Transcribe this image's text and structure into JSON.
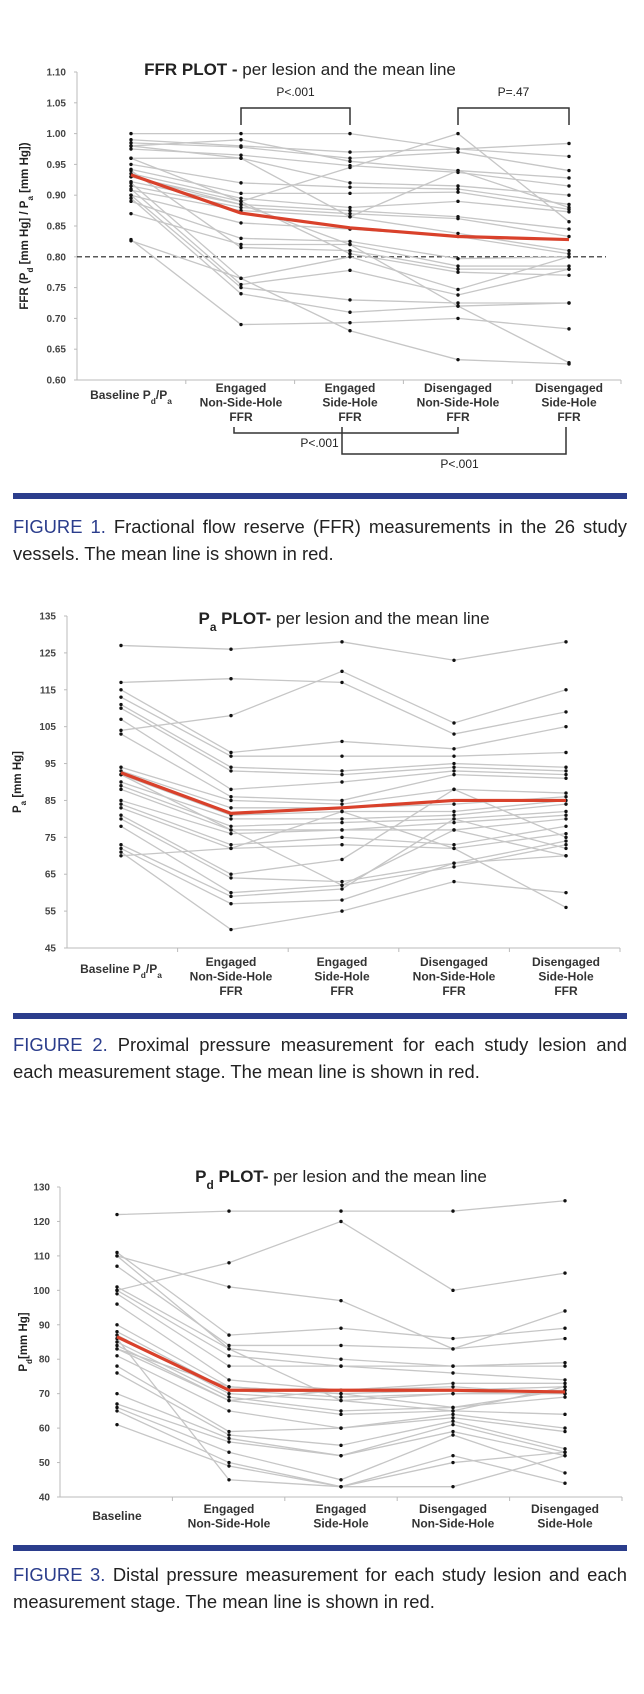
{
  "colors": {
    "individual_line": "#c6c6c6",
    "mean_line": "#d9412b",
    "point": "#111111",
    "caption_accent": "#2b3d8c",
    "reference_line": "#222222"
  },
  "chart_data": [
    {
      "type": "line",
      "title_parts": [
        {
          "text": "FFR PLOT -",
          "bold": true
        },
        {
          "text": " per lesion and the mean line"
        }
      ],
      "ylabel_parts": [
        {
          "text": "FFR (P"
        },
        {
          "text": "d",
          "sub": true
        },
        {
          "text": " [mm Hg] / P"
        },
        {
          "text": "a",
          "sub": true
        },
        {
          "text": " [mm Hg])"
        }
      ],
      "ylim": [
        0.6,
        1.1
      ],
      "yticks": [
        "0.60",
        "0.65",
        "0.70",
        "0.75",
        "0.80",
        "0.85",
        "0.90",
        "0.95",
        "1.00",
        "1.05",
        "1.10"
      ],
      "categories": [
        [
          [
            {
              "text": "Baseline P"
            },
            {
              "text": "d",
              "sub": true
            },
            {
              "text": "/P"
            },
            {
              "text": "a",
              "sub": true
            }
          ]
        ],
        [
          "Engaged",
          "Non-Side-Hole",
          "FFR"
        ],
        [
          "Engaged",
          "Side-Hole",
          "FFR"
        ],
        [
          "Disengaged",
          "Non-Side-Hole",
          "FFR"
        ],
        [
          "Disengaged",
          "Side-Hole",
          "FFR"
        ]
      ],
      "reference_line": {
        "y": 0.8,
        "style": "dashed"
      },
      "annotations": [
        {
          "text": "P<.001",
          "between": [
            1,
            2
          ],
          "position": "top"
        },
        {
          "text": "P=.47",
          "between": [
            3,
            4
          ],
          "position": "top"
        },
        {
          "text": "P<.001",
          "between": [
            1,
            3
          ],
          "position": "bottom"
        },
        {
          "text": "P<.001",
          "between": [
            2,
            4
          ],
          "position": "bottom"
        }
      ],
      "mean": [
        0.933,
        0.871,
        0.847,
        0.833,
        0.828
      ],
      "series": [
        [
          1.0,
          1.0,
          1.0,
          0.975,
          0.963
        ],
        [
          0.99,
          0.98,
          0.97,
          0.975,
          0.984
        ],
        [
          0.985,
          0.978,
          0.96,
          0.97,
          0.94
        ],
        [
          0.98,
          0.99,
          0.955,
          0.94,
          0.928
        ],
        [
          0.975,
          0.965,
          0.948,
          0.937,
          0.915
        ],
        [
          0.96,
          0.96,
          0.92,
          0.915,
          0.9
        ],
        [
          0.95,
          0.92,
          0.913,
          0.91,
          0.885
        ],
        [
          0.942,
          0.903,
          0.903,
          0.905,
          0.877
        ],
        [
          0.935,
          0.895,
          0.88,
          0.89,
          0.873
        ],
        [
          0.93,
          0.89,
          0.945,
          1.0,
          0.857
        ],
        [
          0.922,
          0.885,
          0.875,
          0.865,
          0.845
        ],
        [
          0.915,
          0.88,
          0.87,
          0.862,
          0.833
        ],
        [
          0.908,
          0.875,
          0.865,
          0.838,
          0.81
        ],
        [
          0.9,
          0.855,
          0.845,
          0.833,
          0.805
        ],
        [
          0.89,
          0.83,
          0.825,
          0.797,
          0.8
        ],
        [
          0.87,
          0.82,
          0.82,
          0.785,
          0.785
        ],
        [
          0.94,
          0.815,
          0.81,
          0.78,
          0.78
        ],
        [
          0.96,
          0.89,
          0.805,
          0.775,
          0.77
        ],
        [
          0.92,
          0.765,
          0.8,
          0.747,
          0.8
        ],
        [
          0.91,
          0.755,
          0.778,
          0.738,
          0.78
        ],
        [
          0.9,
          0.75,
          0.73,
          0.725,
          0.725
        ],
        [
          0.895,
          0.74,
          0.71,
          0.72,
          0.725
        ],
        [
          0.828,
          0.69,
          0.693,
          0.7,
          0.683
        ],
        [
          0.826,
          0.765,
          0.68,
          0.633,
          0.626
        ],
        [
          0.93,
          0.885,
          0.82,
          0.72,
          0.628
        ],
        [
          0.98,
          0.96,
          0.865,
          0.94,
          0.88
        ]
      ]
    },
    {
      "type": "line",
      "title_parts": [
        {
          "text": "P",
          "bold": true
        },
        {
          "text": "a",
          "sub": true,
          "bold": true
        },
        {
          "text": " PLOT-",
          "bold": true
        },
        {
          "text": " per lesion and the mean line"
        }
      ],
      "ylabel_parts": [
        {
          "text": "P"
        },
        {
          "text": "a",
          "sub": true
        },
        {
          "text": " [mm Hg]"
        }
      ],
      "ylim": [
        45,
        135
      ],
      "yticks": [
        "45",
        "55",
        "65",
        "75",
        "85",
        "95",
        "105",
        "115",
        "125",
        "135"
      ],
      "categories": [
        [
          [
            {
              "text": "Baseline P"
            },
            {
              "text": "d",
              "sub": true
            },
            {
              "text": "/P"
            },
            {
              "text": "a",
              "sub": true
            }
          ]
        ],
        [
          "Engaged",
          "Non-Side-Hole",
          "FFR"
        ],
        [
          "Engaged",
          "Side-Hole",
          "FFR"
        ],
        [
          "Disengaged",
          "Non-Side-Hole",
          "FFR"
        ],
        [
          "Disengaged",
          "Side-Hole",
          "FFR"
        ]
      ],
      "mean": [
        92.5,
        81.5,
        83,
        85,
        85
      ],
      "series": [
        [
          127,
          126,
          128,
          123,
          128
        ],
        [
          117,
          118,
          117,
          103,
          109
        ],
        [
          104,
          108,
          120,
          106,
          115
        ],
        [
          115,
          98,
          101,
          99,
          105
        ],
        [
          113,
          97,
          97,
          97,
          98
        ],
        [
          111,
          94,
          93,
          95,
          94
        ],
        [
          110,
          93,
          92,
          94,
          93
        ],
        [
          107,
          88,
          90,
          93,
          92
        ],
        [
          103,
          86,
          85,
          92,
          91
        ],
        [
          94,
          85,
          84,
          88,
          87
        ],
        [
          93,
          83,
          83,
          84,
          86
        ],
        [
          92,
          81,
          82,
          82,
          85
        ],
        [
          90,
          80,
          80,
          81,
          84
        ],
        [
          89,
          78,
          79,
          80,
          82
        ],
        [
          88,
          77,
          77,
          79,
          81
        ],
        [
          85,
          76,
          77,
          77,
          80
        ],
        [
          84,
          73,
          75,
          73,
          78
        ],
        [
          83,
          72,
          73,
          72,
          76
        ],
        [
          81,
          65,
          69,
          88,
          75
        ],
        [
          80,
          64,
          63,
          68,
          74
        ],
        [
          78,
          60,
          62,
          67,
          73
        ],
        [
          73,
          59,
          61,
          80,
          72
        ],
        [
          72,
          57,
          58,
          68,
          70
        ],
        [
          71,
          50,
          55,
          63,
          60
        ],
        [
          70,
          72,
          82,
          72,
          56
        ],
        [
          92,
          77,
          62,
          77,
          70
        ]
      ]
    },
    {
      "type": "line",
      "title_parts": [
        {
          "text": "P",
          "bold": true
        },
        {
          "text": "d",
          "sub": true,
          "bold": true
        },
        {
          "text": " PLOT-",
          "bold": true
        },
        {
          "text": " per lesion and the mean line"
        }
      ],
      "ylabel_parts": [
        {
          "text": "P"
        },
        {
          "text": "d",
          "sub": true
        },
        {
          "text": "[mm Hg]"
        }
      ],
      "ylim": [
        40,
        130
      ],
      "yticks": [
        "40",
        "50",
        "60",
        "70",
        "80",
        "90",
        "100",
        "110",
        "120",
        "130"
      ],
      "categories": [
        [
          "Baseline"
        ],
        [
          "Engaged",
          "Non-Side-Hole"
        ],
        [
          "Engaged",
          "Side-Hole"
        ],
        [
          "Disengaged",
          "Non-Side-Hole"
        ],
        [
          "Disengaged",
          "Side-Hole"
        ]
      ],
      "mean": [
        86.5,
        71,
        71,
        71,
        70.5
      ],
      "series": [
        [
          122,
          123,
          123,
          123,
          126
        ],
        [
          100,
          108,
          120,
          100,
          105
        ],
        [
          110,
          101,
          97,
          83,
          94
        ],
        [
          111,
          87,
          89,
          86,
          89
        ],
        [
          107,
          84,
          84,
          83,
          86
        ],
        [
          101,
          83,
          80,
          78,
          79
        ],
        [
          100,
          81,
          78,
          78,
          78
        ],
        [
          99,
          78,
          78,
          76,
          74
        ],
        [
          96,
          74,
          71,
          73,
          73
        ],
        [
          90,
          72,
          70,
          71,
          72
        ],
        [
          88,
          71,
          69,
          70,
          71
        ],
        [
          87,
          70,
          68,
          70,
          70
        ],
        [
          85,
          69,
          65,
          66,
          69
        ],
        [
          83,
          68,
          64,
          65,
          64
        ],
        [
          81,
          65,
          60,
          64,
          60
        ],
        [
          78,
          59,
          60,
          63,
          59
        ],
        [
          76,
          58,
          55,
          62,
          54
        ],
        [
          70,
          57,
          52,
          61,
          53
        ],
        [
          67,
          56,
          52,
          59,
          52
        ],
        [
          66,
          53,
          45,
          58,
          47
        ],
        [
          65,
          50,
          43,
          52,
          44
        ],
        [
          61,
          49,
          43,
          43,
          52
        ],
        [
          86,
          45,
          43,
          50,
          53
        ],
        [
          84,
          68,
          71,
          72,
          70
        ],
        [
          83,
          72,
          70,
          66,
          71
        ],
        [
          110,
          83,
          68,
          65,
          72
        ]
      ]
    }
  ],
  "captions": [
    {
      "label": "FIGURE 1.",
      "text": " Fractional flow reserve (FFR) measurements in the 26 study vessels. The mean line is shown in red."
    },
    {
      "label": "FIGURE 2.",
      "text": " Proximal pressure measurement for each study lesion and each measurement stage. The mean line is shown in red."
    },
    {
      "label": "FIGURE 3.",
      "text": " Distal pressure measurement for each study lesion and each measurement stage. The mean line is shown in red."
    }
  ]
}
